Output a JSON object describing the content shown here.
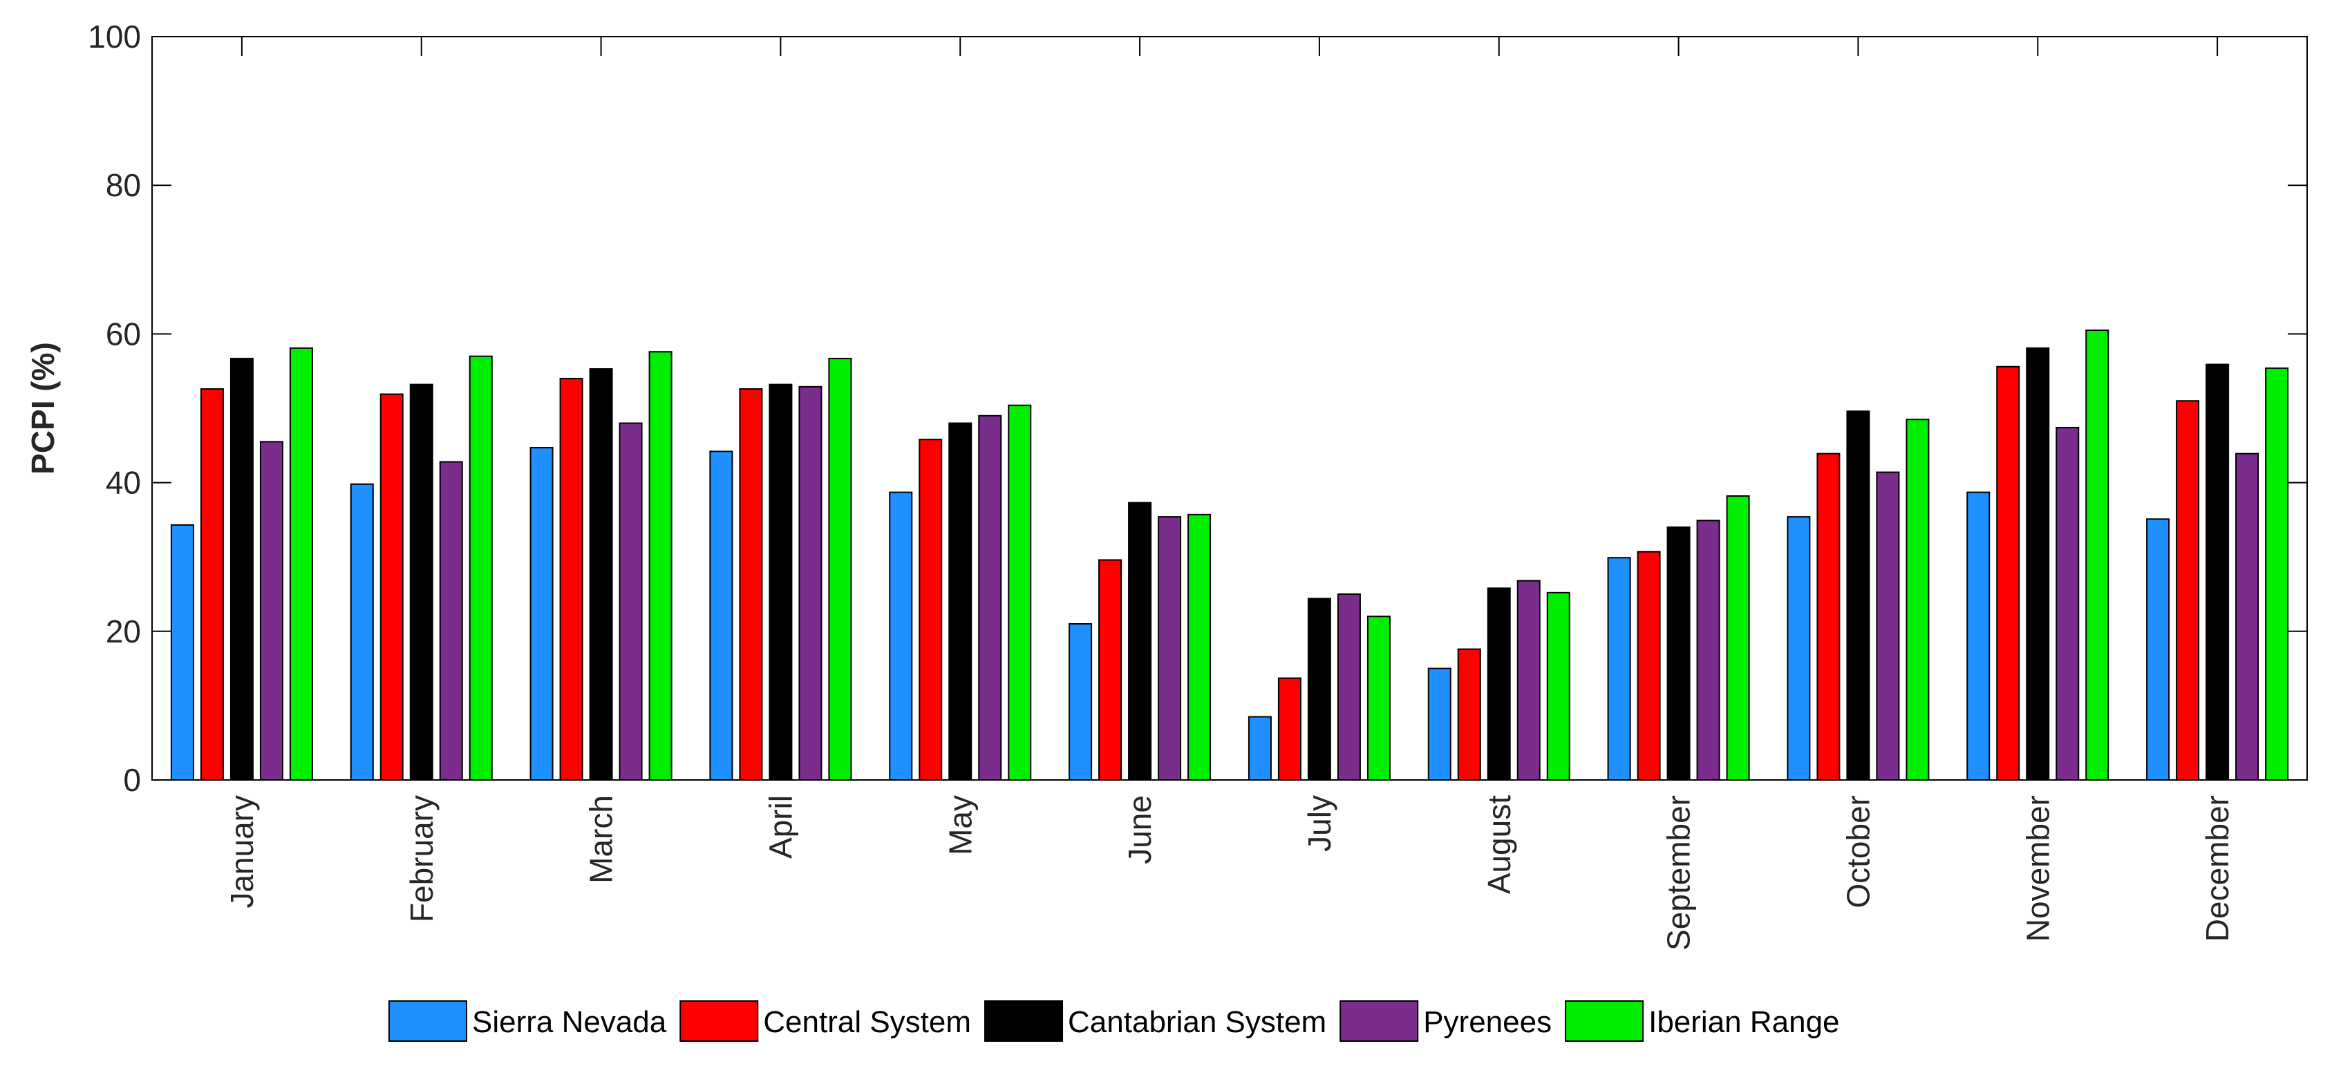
{
  "chart_data": {
    "type": "bar",
    "title": "",
    "xlabel": "",
    "ylabel": "PCPI (%)",
    "ylim": [
      0,
      100
    ],
    "yticks": [
      0,
      20,
      40,
      60,
      80,
      100
    ],
    "ytick_labels": [
      "0",
      "20",
      "40",
      "60",
      "80",
      "100"
    ],
    "grid": false,
    "legend_position": "bottom",
    "categories": [
      "January",
      "February",
      "March",
      "April",
      "May",
      "June",
      "July",
      "August",
      "September",
      "October",
      "November",
      "December"
    ],
    "series": [
      {
        "name": "Sierra Nevada",
        "color": "#1e90ff",
        "values": [
          34.3,
          39.8,
          44.7,
          44.2,
          38.7,
          21.0,
          8.5,
          15.0,
          29.9,
          35.4,
          38.7,
          35.1
        ]
      },
      {
        "name": "Central System",
        "color": "#ff0000",
        "values": [
          52.6,
          51.9,
          54.0,
          52.6,
          45.8,
          29.6,
          13.7,
          17.6,
          30.7,
          43.9,
          55.6,
          51.0
        ]
      },
      {
        "name": "Cantabrian System",
        "color": "#000000",
        "values": [
          56.7,
          53.2,
          55.3,
          53.2,
          48.0,
          37.3,
          24.4,
          25.8,
          34.0,
          49.6,
          58.1,
          55.9
        ]
      },
      {
        "name": "Pyrenees",
        "color": "#7b2d8e",
        "values": [
          45.5,
          42.8,
          48.0,
          52.9,
          49.0,
          35.4,
          25.0,
          26.8,
          34.9,
          41.4,
          47.4,
          43.9
        ]
      },
      {
        "name": "Iberian Range",
        "color": "#00ee00",
        "values": [
          58.1,
          57.0,
          57.6,
          56.7,
          50.4,
          35.7,
          22.0,
          25.2,
          38.2,
          48.5,
          60.5,
          55.4
        ]
      }
    ]
  }
}
